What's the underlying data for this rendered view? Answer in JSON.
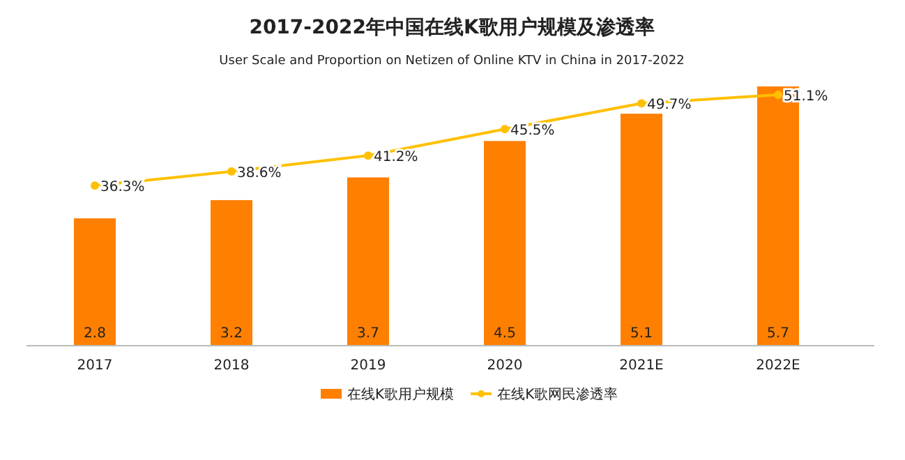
{
  "chart_data": {
    "type": "bar",
    "title": "2017-2022年中国在线K歌用户规模及渗透率",
    "subtitle": "User Scale and Proportion on Netizen of Online KTV in China in 2017-2022",
    "categories": [
      "2017",
      "2018",
      "2019",
      "2020",
      "2021E",
      "2022E"
    ],
    "legend": "bottom",
    "marker": "circle",
    "series": [
      {
        "name": "在线K歌用户规模",
        "color": "#ff7f00",
        "values": [
          2.8,
          3.2,
          3.7,
          4.5,
          5.1,
          5.7
        ],
        "value_labels": [
          "2.8",
          "3.2",
          "3.7",
          "4.5",
          "5.1",
          "5.7"
        ]
      },
      {
        "name": "在线K歌网民渗透率",
        "type": "line",
        "axis": "y2",
        "color": "#ffc000",
        "values": [
          36.3,
          38.6,
          41.2,
          45.5,
          49.7,
          51.1
        ],
        "value_labels": [
          "36.3%",
          "38.6%",
          "41.2%",
          "45.5%",
          "49.7%",
          "51.1%"
        ]
      }
    ]
  }
}
